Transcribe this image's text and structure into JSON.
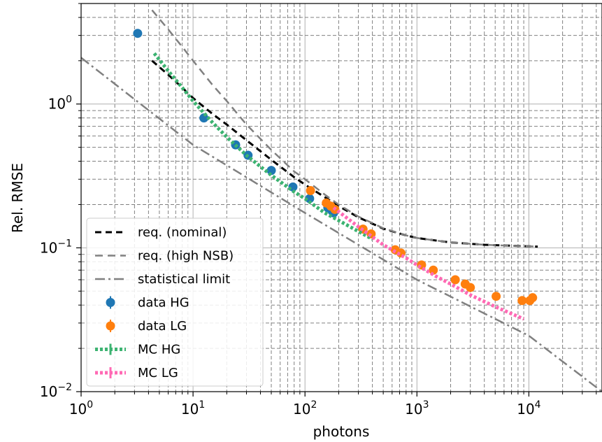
{
  "chart_data": {
    "type": "scatter",
    "xlabel": "photons",
    "ylabel": "Rel. RMSE",
    "x_scale": "log",
    "y_scale": "log",
    "xlim": [
      1,
      45000
    ],
    "ylim": [
      0.01,
      5
    ],
    "grid": true,
    "legend_position": "bottom-left",
    "x_ticks": [
      {
        "value": 1,
        "base": "10",
        "exp": "0"
      },
      {
        "value": 10,
        "base": "10",
        "exp": "1"
      },
      {
        "value": 100,
        "base": "10",
        "exp": "2"
      },
      {
        "value": 1000,
        "base": "10",
        "exp": "3"
      },
      {
        "value": 10000,
        "base": "10",
        "exp": "4"
      }
    ],
    "y_ticks": [
      {
        "value": 0.01,
        "base": "10",
        "exp": "−2"
      },
      {
        "value": 0.1,
        "base": "10",
        "exp": "−1"
      },
      {
        "value": 1,
        "base": "10",
        "exp": "0"
      }
    ],
    "series": [
      {
        "name": "req. (nominal)",
        "kind": "line",
        "color": "#000000",
        "dash": "9,6",
        "width": 3,
        "x": [
          4.3,
          6,
          8,
          10,
          15,
          20,
          30,
          50,
          80,
          100,
          150,
          200,
          300,
          500,
          800,
          1000,
          2000,
          4000,
          8000,
          12000
        ],
        "y": [
          2.0,
          1.6,
          1.3,
          1.1,
          0.85,
          0.72,
          0.56,
          0.41,
          0.31,
          0.275,
          0.225,
          0.195,
          0.163,
          0.136,
          0.122,
          0.117,
          0.109,
          0.105,
          0.103,
          0.102
        ]
      },
      {
        "name": "req. (high NSB)",
        "kind": "line",
        "color": "#808080",
        "dash": "11,7",
        "width": 2.5,
        "x": [
          4.3,
          6,
          8,
          10,
          15,
          20,
          30,
          50,
          80,
          100,
          150,
          200,
          300,
          500,
          800,
          1000,
          2000,
          4000,
          8000,
          12000
        ],
        "y": [
          4.5,
          3.3,
          2.5,
          2.0,
          1.35,
          1.05,
          0.72,
          0.48,
          0.34,
          0.3,
          0.235,
          0.2,
          0.165,
          0.137,
          0.122,
          0.117,
          0.109,
          0.105,
          0.103,
          0.102
        ]
      },
      {
        "name": "statistical limit",
        "kind": "line",
        "color": "#808080",
        "dash": "14,5,3,5",
        "width": 2.5,
        "x": [
          1,
          10,
          100,
          1000,
          10000,
          45000
        ],
        "y": [
          2.1,
          0.52,
          0.175,
          0.06,
          0.0245,
          0.01
        ]
      },
      {
        "name": "data HG",
        "kind": "points",
        "color": "#1f77b4",
        "x": [
          3.2,
          12.5,
          24,
          31,
          50,
          78,
          110,
          160,
          175,
          180
        ],
        "y": [
          3.1,
          0.8,
          0.52,
          0.44,
          0.345,
          0.265,
          0.22,
          0.19,
          0.18,
          0.175
        ]
      },
      {
        "name": "data LG",
        "kind": "points",
        "color": "#ff7f0e",
        "x": [
          112,
          155,
          170,
          185,
          330,
          390,
          640,
          720,
          1100,
          1400,
          2200,
          2700,
          3000,
          5100,
          8700,
          10200,
          10800
        ],
        "y": [
          0.25,
          0.205,
          0.195,
          0.185,
          0.135,
          0.125,
          0.097,
          0.092,
          0.076,
          0.07,
          0.06,
          0.056,
          0.053,
          0.046,
          0.043,
          0.043,
          0.045
        ]
      },
      {
        "name": "MC HG",
        "kind": "line",
        "color": "#3cb371",
        "dash": "4,3",
        "width": 5,
        "x": [
          4.5,
          6,
          8,
          10,
          15,
          20,
          30,
          50,
          80,
          100,
          150,
          200,
          300,
          400
        ],
        "y": [
          2.25,
          1.7,
          1.3,
          1.05,
          0.74,
          0.59,
          0.44,
          0.32,
          0.245,
          0.22,
          0.175,
          0.155,
          0.13,
          0.115
        ]
      },
      {
        "name": "MC LG",
        "kind": "line",
        "color": "#ff69b4",
        "dash": "4,3",
        "width": 5,
        "x": [
          180,
          300,
          500,
          800,
          1000,
          1500,
          2000,
          3000,
          5000,
          9000
        ],
        "y": [
          0.19,
          0.14,
          0.105,
          0.085,
          0.076,
          0.063,
          0.056,
          0.047,
          0.039,
          0.032
        ]
      }
    ]
  }
}
